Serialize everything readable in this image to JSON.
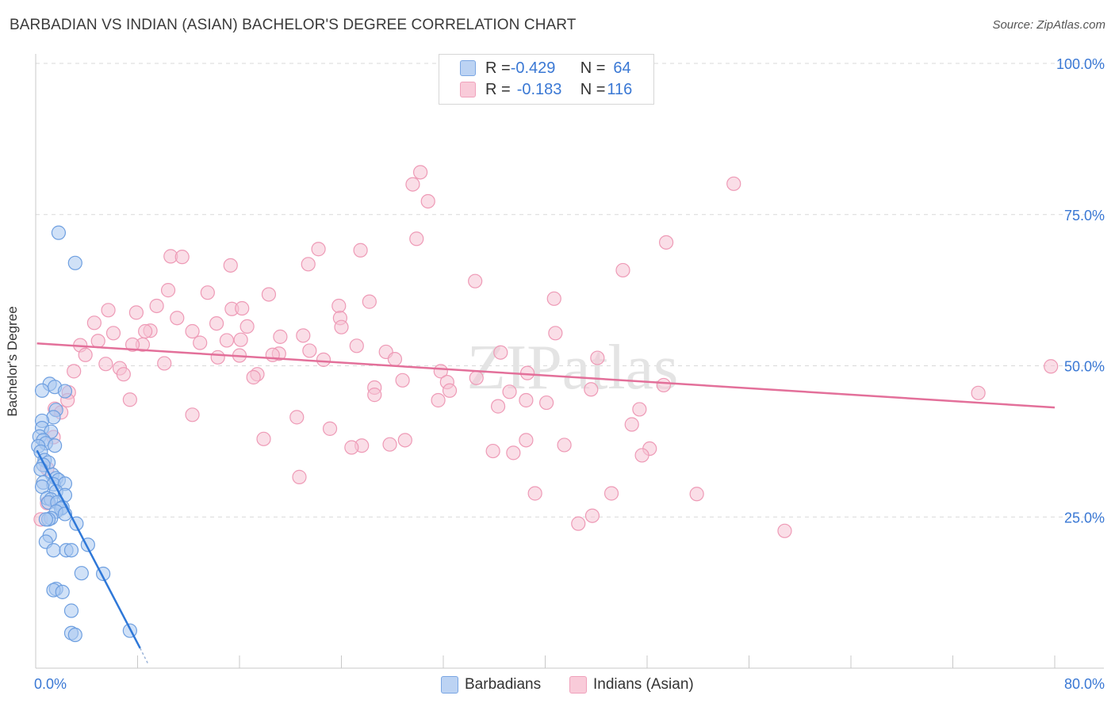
{
  "title": "BARBADIAN VS INDIAN (ASIAN) BACHELOR'S DEGREE CORRELATION CHART",
  "source": "Source: ZipAtlas.com",
  "watermark": "ZIPatlas",
  "legend_top": [
    {
      "r_label": "R = ",
      "r_value": "-0.429",
      "n_label": "N = ",
      "n_value": "64"
    },
    {
      "r_label": "R = ",
      "r_value": "-0.183",
      "n_label": "N = ",
      "n_value": "116"
    }
  ],
  "legend_bottom": [
    {
      "label": "Barbadians"
    },
    {
      "label": "Indians (Asian)"
    }
  ],
  "colors": {
    "blue_fill": "#a9c8f0",
    "blue_stroke": "#6e9fe0",
    "blue_line": "#2f78d8",
    "pink_fill": "#f6c3d4",
    "pink_stroke": "#ee9ab6",
    "pink_line": "#e3709a",
    "axis_text": "#3a78d4",
    "grid": "#d9d9d9"
  },
  "chart_data": {
    "type": "scatter",
    "title": "BARBADIAN VS INDIAN (ASIAN) BACHELOR'S DEGREE CORRELATION CHART",
    "xlabel": "",
    "ylabel": "Bachelor's Degree",
    "xlim": [
      0,
      80
    ],
    "ylim": [
      0,
      100
    ],
    "x_tick_labels": [
      {
        "value": 0,
        "label": "0.0%"
      },
      {
        "value": 80,
        "label": "80.0%"
      }
    ],
    "y_tick_labels": [
      {
        "value": 25,
        "label": "25.0%"
      },
      {
        "value": 50,
        "label": "50.0%"
      },
      {
        "value": 75,
        "label": "75.0%"
      },
      {
        "value": 100,
        "label": "100.0%"
      }
    ],
    "series": [
      {
        "name": "Barbadians",
        "R": -0.429,
        "N": 64,
        "trend": {
          "x": [
            0.1,
            8.2
          ],
          "y": [
            36.0,
            3.3
          ]
        },
        "trend_ext": {
          "x": [
            8.2,
            8.8
          ],
          "y": [
            3.3,
            0.8
          ]
        },
        "points": [
          [
            1.8,
            72.0
          ],
          [
            3.1,
            67.0
          ],
          [
            1.1,
            47.0
          ],
          [
            1.5,
            46.5
          ],
          [
            0.5,
            45.9
          ],
          [
            2.3,
            45.8
          ],
          [
            1.6,
            42.7
          ],
          [
            1.4,
            41.5
          ],
          [
            0.5,
            40.9
          ],
          [
            0.5,
            39.7
          ],
          [
            1.2,
            39.1
          ],
          [
            0.3,
            38.3
          ],
          [
            0.6,
            37.7
          ],
          [
            0.8,
            37.2
          ],
          [
            0.2,
            36.7
          ],
          [
            1.5,
            36.8
          ],
          [
            0.4,
            35.8
          ],
          [
            0.7,
            34.4
          ],
          [
            1.0,
            34.0
          ],
          [
            0.6,
            33.6
          ],
          [
            0.4,
            32.9
          ],
          [
            1.3,
            32.0
          ],
          [
            1.6,
            31.4
          ],
          [
            1.8,
            31.1
          ],
          [
            0.6,
            30.7
          ],
          [
            1.4,
            30.4
          ],
          [
            2.3,
            30.5
          ],
          [
            0.5,
            30.0
          ],
          [
            1.6,
            29.2
          ],
          [
            2.3,
            28.6
          ],
          [
            0.9,
            28.1
          ],
          [
            1.2,
            27.9
          ],
          [
            1.0,
            27.4
          ],
          [
            1.7,
            27.4
          ],
          [
            2.1,
            26.6
          ],
          [
            2.0,
            26.4
          ],
          [
            1.6,
            25.9
          ],
          [
            2.3,
            25.5
          ],
          [
            1.2,
            24.8
          ],
          [
            1.0,
            24.6
          ],
          [
            0.8,
            24.6
          ],
          [
            3.2,
            23.9
          ],
          [
            1.1,
            21.9
          ],
          [
            0.8,
            20.9
          ],
          [
            4.1,
            20.4
          ],
          [
            1.4,
            19.5
          ],
          [
            2.4,
            19.5
          ],
          [
            2.8,
            19.5
          ],
          [
            3.6,
            15.7
          ],
          [
            5.3,
            15.6
          ],
          [
            1.6,
            13.1
          ],
          [
            1.4,
            12.9
          ],
          [
            2.1,
            12.6
          ],
          [
            2.8,
            9.5
          ],
          [
            2.8,
            5.8
          ],
          [
            3.1,
            5.5
          ],
          [
            7.4,
            6.2
          ]
        ]
      },
      {
        "name": "Indians (Asian)",
        "R": -0.183,
        "N": 116,
        "trend": {
          "x": [
            0.1,
            80.0
          ],
          "y": [
            53.7,
            43.1
          ]
        },
        "points": [
          [
            30.2,
            82.0
          ],
          [
            29.6,
            80.0
          ],
          [
            54.8,
            80.1
          ],
          [
            30.8,
            77.2
          ],
          [
            29.9,
            71.0
          ],
          [
            49.5,
            70.4
          ],
          [
            22.2,
            69.3
          ],
          [
            25.5,
            69.1
          ],
          [
            10.6,
            68.1
          ],
          [
            11.5,
            68.0
          ],
          [
            15.3,
            66.6
          ],
          [
            21.4,
            66.8
          ],
          [
            34.5,
            64.0
          ],
          [
            46.1,
            65.8
          ],
          [
            10.4,
            62.5
          ],
          [
            13.5,
            62.1
          ],
          [
            18.3,
            61.8
          ],
          [
            40.7,
            61.1
          ],
          [
            26.2,
            60.6
          ],
          [
            23.8,
            59.9
          ],
          [
            9.5,
            59.9
          ],
          [
            15.4,
            59.4
          ],
          [
            16.2,
            59.5
          ],
          [
            5.7,
            59.2
          ],
          [
            7.9,
            58.8
          ],
          [
            11.1,
            57.9
          ],
          [
            23.9,
            57.9
          ],
          [
            4.6,
            57.1
          ],
          [
            14.2,
            57.0
          ],
          [
            24.0,
            56.4
          ],
          [
            16.6,
            56.5
          ],
          [
            9.0,
            55.8
          ],
          [
            12.3,
            55.7
          ],
          [
            6.1,
            55.4
          ],
          [
            8.6,
            55.7
          ],
          [
            40.8,
            55.4
          ],
          [
            19.2,
            54.8
          ],
          [
            21.0,
            55.0
          ],
          [
            4.9,
            54.1
          ],
          [
            15.0,
            54.2
          ],
          [
            12.9,
            53.8
          ],
          [
            16.1,
            54.3
          ],
          [
            25.2,
            53.3
          ],
          [
            8.4,
            53.5
          ],
          [
            3.5,
            53.4
          ],
          [
            7.6,
            53.5
          ],
          [
            21.5,
            52.5
          ],
          [
            36.5,
            52.2
          ],
          [
            19.1,
            52.0
          ],
          [
            27.5,
            52.3
          ],
          [
            18.6,
            51.8
          ],
          [
            3.9,
            51.8
          ],
          [
            28.2,
            51.1
          ],
          [
            14.3,
            51.4
          ],
          [
            16.0,
            51.7
          ],
          [
            22.6,
            51.0
          ],
          [
            44.1,
            51.3
          ],
          [
            10.1,
            50.4
          ],
          [
            5.5,
            50.3
          ],
          [
            6.6,
            49.6
          ],
          [
            3.0,
            49.1
          ],
          [
            31.8,
            49.1
          ],
          [
            38.6,
            48.8
          ],
          [
            6.9,
            48.6
          ],
          [
            17.4,
            48.6
          ],
          [
            17.1,
            48.1
          ],
          [
            79.7,
            49.9
          ],
          [
            28.8,
            47.6
          ],
          [
            34.6,
            48.0
          ],
          [
            32.3,
            47.3
          ],
          [
            49.3,
            46.8
          ],
          [
            26.6,
            46.4
          ],
          [
            43.6,
            46.1
          ],
          [
            74.0,
            45.5
          ],
          [
            37.2,
            45.7
          ],
          [
            26.6,
            45.2
          ],
          [
            32.5,
            45.9
          ],
          [
            2.6,
            45.6
          ],
          [
            2.5,
            44.3
          ],
          [
            7.4,
            44.4
          ],
          [
            31.6,
            44.3
          ],
          [
            38.5,
            44.3
          ],
          [
            40.1,
            43.9
          ],
          [
            36.3,
            43.3
          ],
          [
            47.4,
            42.8
          ],
          [
            1.5,
            42.9
          ],
          [
            2.0,
            42.3
          ],
          [
            12.3,
            41.9
          ],
          [
            20.5,
            41.5
          ],
          [
            46.8,
            40.3
          ],
          [
            23.1,
            39.6
          ],
          [
            1.4,
            38.2
          ],
          [
            17.9,
            37.9
          ],
          [
            29.0,
            37.7
          ],
          [
            38.5,
            37.7
          ],
          [
            27.8,
            37.0
          ],
          [
            41.5,
            36.9
          ],
          [
            25.6,
            36.8
          ],
          [
            24.8,
            36.5
          ],
          [
            48.2,
            36.3
          ],
          [
            35.9,
            35.9
          ],
          [
            37.5,
            35.6
          ],
          [
            47.6,
            35.2
          ],
          [
            0.9,
            33.0
          ],
          [
            20.7,
            31.6
          ],
          [
            51.9,
            28.8
          ],
          [
            39.2,
            28.9
          ],
          [
            45.2,
            28.9
          ],
          [
            0.9,
            27.3
          ],
          [
            43.7,
            25.2
          ],
          [
            42.6,
            23.9
          ],
          [
            0.4,
            24.6
          ],
          [
            58.8,
            22.7
          ]
        ]
      }
    ]
  }
}
